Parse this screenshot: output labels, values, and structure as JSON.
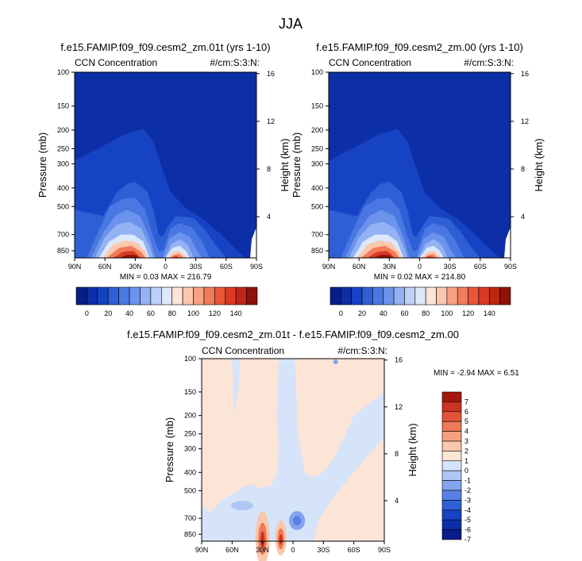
{
  "page_title": "JJA",
  "colors": {
    "full_scale": [
      "#081d8a",
      "#0c2fa8",
      "#1643c4",
      "#2f5fd6",
      "#4a78e2",
      "#6b92ec",
      "#93b2f4",
      "#bdd0f8",
      "#dce8fb",
      "#fce4d6",
      "#fbc8ad",
      "#f7a283",
      "#f27b59",
      "#e9563a",
      "#d83a24",
      "#bf2614",
      "#8e1209"
    ],
    "diff_scale": [
      "#081d8a",
      "#0c2fa8",
      "#1643c4",
      "#2f5fd6",
      "#5680e4",
      "#84a4ee",
      "#afc6f5",
      "#d6e4fa",
      "#fce4d6",
      "#f9c7ac",
      "#f5a07f",
      "#ee7a58",
      "#e25437",
      "#cc3320",
      "#a3170c"
    ]
  },
  "chart_data": [
    {
      "type": "heatmap",
      "title": "f.e15.FAMIP.f09_f09.cesm2_zm.01t (yrs 1-10)",
      "left_label": "CCN Concentration",
      "right_label": "#/cm:S:3:N:",
      "ylabel": "Pressure (mb)",
      "ylabel_right": "Height (km)",
      "x_ticks": [
        "90N",
        "60N",
        "30N",
        "0",
        "30S",
        "60S",
        "90S"
      ],
      "x_values": [
        90,
        60,
        30,
        0,
        -30,
        -60,
        -90
      ],
      "y_ticks": [
        100,
        150,
        200,
        250,
        300,
        400,
        500,
        700,
        850
      ],
      "y_scale": "log",
      "ylim": [
        100,
        925
      ],
      "height_ticks": [
        16,
        12,
        8,
        4
      ],
      "stats": "MIN =   0.03   MAX = 216.79",
      "colorbar": {
        "orientation": "horizontal",
        "levels": [
          "0",
          "20",
          "40",
          "60",
          "80",
          "100",
          "120",
          "140"
        ]
      }
    },
    {
      "type": "heatmap",
      "title": "f.e15.FAMIP.f09_f09.cesm2_zm.00 (yrs 1-10)",
      "left_label": "CCN Concentration",
      "right_label": "#/cm:S:3:N:",
      "ylabel": "Pressure (mb)",
      "ylabel_right": "Height (km)",
      "x_ticks": [
        "90N",
        "60N",
        "30N",
        "0",
        "30S",
        "60S",
        "90S"
      ],
      "x_values": [
        90,
        60,
        30,
        0,
        -30,
        -60,
        -90
      ],
      "y_ticks": [
        100,
        150,
        200,
        250,
        300,
        400,
        500,
        700,
        850
      ],
      "y_scale": "log",
      "ylim": [
        100,
        925
      ],
      "height_ticks": [
        16,
        12,
        8,
        4
      ],
      "stats": "MIN =   0.02   MAX = 214.80",
      "colorbar": {
        "orientation": "horizontal",
        "levels": [
          "0",
          "20",
          "40",
          "60",
          "80",
          "100",
          "120",
          "140"
        ]
      }
    },
    {
      "type": "heatmap",
      "title": "f.e15.FAMIP.f09_f09.cesm2_zm.01t - f.e15.FAMIP.f09_f09.cesm2_zm.00",
      "left_label": "CCN Concentration",
      "right_label": "#/cm:S:3:N:",
      "ylabel": "Pressure (mb)",
      "ylabel_right": "Height (km)",
      "x_ticks": [
        "90N",
        "60N",
        "30N",
        "0",
        "30S",
        "60S",
        "90S"
      ],
      "x_values": [
        90,
        60,
        30,
        0,
        -30,
        -60,
        -90
      ],
      "y_ticks": [
        100,
        150,
        200,
        250,
        300,
        400,
        500,
        700,
        850
      ],
      "y_scale": "log",
      "ylim": [
        100,
        925
      ],
      "height_ticks": [
        16,
        12,
        8,
        4
      ],
      "stats": "MIN =  -2.94   MAX =   6.51",
      "colorbar": {
        "orientation": "vertical",
        "levels": [
          "7",
          "6",
          "5",
          "4",
          "3",
          "2",
          "1",
          "0",
          "-1",
          "-2",
          "-3",
          "-4",
          "-5",
          "-6",
          "-7"
        ]
      }
    }
  ]
}
